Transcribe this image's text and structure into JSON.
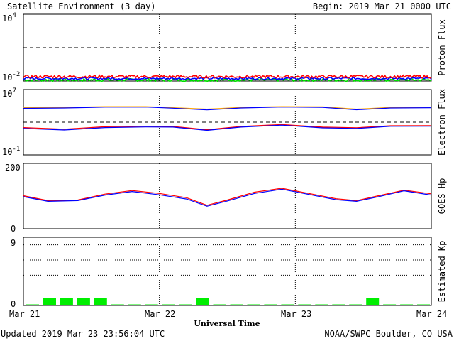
{
  "header": {
    "title": "Satellite Environment (3 day)",
    "begin": "Begin:  2019 Mar 21 0000 UTC"
  },
  "footer": {
    "updated": "Updated 2019 Mar 23 23:56:04 UTC",
    "credit": "NOAA/SWPC Boulder, CO USA"
  },
  "colors": {
    "red": "#ff0000",
    "blue": "#0000ff",
    "green": "#00e000",
    "orange": "#ffa500",
    "bar_green": "#00ee00"
  },
  "chart_data": [
    {
      "type": "line",
      "ylabel": "Proton Flux",
      "scale": "log",
      "ylim": [
        0.01,
        10000
      ],
      "y_ticks": [
        {
          "base": "10",
          "exp": "4"
        },
        {
          "base": "10",
          "exp": "-2"
        }
      ],
      "threshold": 10,
      "x_days": [
        0,
        1,
        2,
        3
      ],
      "series": [
        {
          "color": "red",
          "base": 0.025,
          "noise": 0.25
        },
        {
          "color": "blue",
          "base": 0.017,
          "noise": 0.2
        },
        {
          "color": "green",
          "base": 0.0125,
          "noise": 0.25
        }
      ]
    },
    {
      "type": "line",
      "ylabel": "Electron Flux",
      "scale": "log",
      "ylim": [
        0.1,
        10000000
      ],
      "y_ticks": [
        {
          "base": "10",
          "exp": "7"
        },
        {
          "base": "10",
          "exp": "-1"
        }
      ],
      "threshold": 1000,
      "series": [
        {
          "color": "orange",
          "x": [
            0,
            0.3,
            0.6,
            0.9,
            1.1,
            1.35,
            1.6,
            1.9,
            2.2,
            2.45,
            2.7,
            3.0
          ],
          "y": [
            60000,
            65000,
            80000,
            80000,
            60000,
            40000,
            65000,
            80000,
            75000,
            40000,
            65000,
            70000
          ]
        },
        {
          "color": "blue",
          "x": [
            0,
            0.3,
            0.6,
            0.9,
            1.1,
            1.35,
            1.6,
            1.9,
            2.2,
            2.45,
            2.7,
            3.0
          ],
          "y": [
            50000,
            55000,
            70000,
            72000,
            52000,
            32000,
            55000,
            72000,
            65000,
            33000,
            55000,
            60000
          ]
        },
        {
          "color": "red",
          "x": [
            0,
            0.3,
            0.6,
            0.9,
            1.1,
            1.35,
            1.6,
            1.9,
            2.2,
            2.45,
            2.7,
            3.0
          ],
          "y": [
            220,
            140,
            280,
            320,
            300,
            120,
            300,
            520,
            250,
            210,
            370,
            380
          ]
        },
        {
          "color": "blue",
          "x": [
            0,
            0.3,
            0.6,
            0.9,
            1.1,
            1.35,
            1.6,
            1.9,
            2.2,
            2.45,
            2.7,
            3.0
          ],
          "y": [
            170,
            110,
            220,
            260,
            250,
            100,
            250,
            430,
            200,
            170,
            310,
            320
          ]
        }
      ]
    },
    {
      "type": "line",
      "ylabel": "GOES Hp",
      "scale": "linear",
      "ylim": [
        0,
        200
      ],
      "y_ticks": [
        "200",
        "0"
      ],
      "series": [
        {
          "color": "red",
          "x": [
            0,
            0.18,
            0.4,
            0.6,
            0.8,
            1.0,
            1.2,
            1.35,
            1.5,
            1.7,
            1.9,
            2.1,
            2.3,
            2.45,
            2.6,
            2.8,
            3.0
          ],
          "y": [
            101,
            86,
            88,
            106,
            117,
            108,
            95,
            72,
            88,
            112,
            124,
            108,
            92,
            86,
            100,
            118,
            107
          ]
        },
        {
          "color": "blue",
          "x": [
            0,
            0.18,
            0.4,
            0.6,
            0.8,
            1.0,
            1.2,
            1.35,
            1.5,
            1.7,
            1.9,
            2.1,
            2.3,
            2.45,
            2.6,
            2.8,
            3.0
          ],
          "y": [
            98,
            84,
            86,
            103,
            114,
            104,
            91,
            69,
            85,
            108,
            121,
            105,
            89,
            84,
            97,
            116,
            103
          ]
        }
      ]
    },
    {
      "type": "bar",
      "ylabel": "Estimated Kp",
      "ylim": [
        0,
        9
      ],
      "y_ticks": [
        "9",
        "0"
      ],
      "gridlines": [
        4,
        6,
        8
      ],
      "bar_width_days": 0.125,
      "kp": [
        0,
        1,
        1,
        1,
        1,
        0,
        0,
        0,
        0,
        0,
        1,
        0,
        0,
        0,
        0,
        0,
        0,
        0,
        0,
        0,
        1,
        0,
        0,
        0
      ]
    }
  ],
  "x_axis": {
    "label": "Universal Time",
    "ticks": [
      "Mar 21",
      "Mar 22",
      "Mar 23",
      "Mar 24"
    ]
  }
}
